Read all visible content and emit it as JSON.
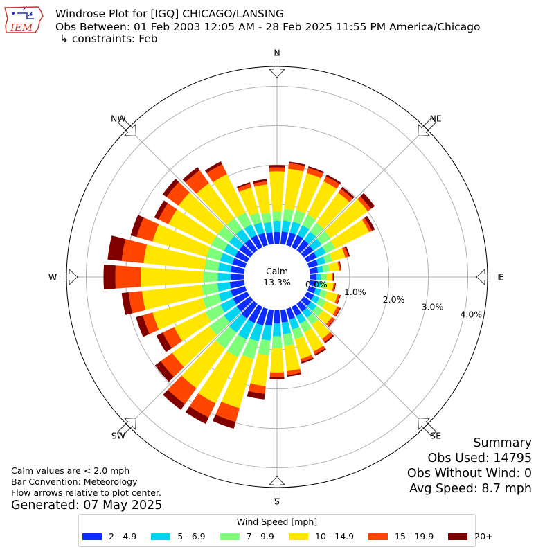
{
  "header": {
    "logo_text": "IEM",
    "title": "Windrose Plot for [IGQ] CHICAGO/LANSING",
    "subtitle": "Obs Between: 01 Feb 2003 12:05 AM - 28 Feb 2025 11:55 PM America/Chicago",
    "constraints": "↳ constraints: Feb"
  },
  "notes": {
    "calm_note": "Calm values are < 2.0 mph",
    "bar_convention": "Bar Convention: Meteorology",
    "flow_arrows": "Flow arrows relative to plot center.",
    "generated": "Generated: 07 May 2025"
  },
  "summary": {
    "heading": "Summary",
    "obs_used": "Obs Used: 14795",
    "obs_without_wind": "Obs Without Wind: 0",
    "avg_speed": "Avg Speed: 8.7 mph"
  },
  "legend": {
    "title": "Wind Speed [mph]",
    "items": [
      {
        "label": "2 - 4.9",
        "color": "#0c2cff"
      },
      {
        "label": "5 - 6.9",
        "color": "#00d4f0"
      },
      {
        "label": "7 - 9.9",
        "color": "#7dff7a"
      },
      {
        "label": "10 - 14.9",
        "color": "#ffe600"
      },
      {
        "label": "15 - 19.9",
        "color": "#ff4500"
      },
      {
        "label": "20+",
        "color": "#800000"
      }
    ]
  },
  "chart_data": {
    "type": "windrose",
    "calm_label": "Calm",
    "calm_value": "13.3%",
    "radial_ticks": [
      {
        "value": 0,
        "label": "0.0%"
      },
      {
        "value": 1,
        "label": "1.0%"
      },
      {
        "value": 2,
        "label": "2.0%"
      },
      {
        "value": 3,
        "label": "3.0%"
      },
      {
        "value": 4,
        "label": "4.0%"
      }
    ],
    "rmax": 4.5,
    "directions": [
      {
        "label": "N",
        "deg": 0
      },
      {
        "label": "NE",
        "deg": 45
      },
      {
        "label": "E",
        "deg": 90
      },
      {
        "label": "SE",
        "deg": 135
      },
      {
        "label": "S",
        "deg": 180
      },
      {
        "label": "SW",
        "deg": 225
      },
      {
        "label": "W",
        "deg": 270
      },
      {
        "label": "NW",
        "deg": 315
      }
    ],
    "sector_width_deg": 10,
    "bins": [
      "2 - 4.9",
      "5 - 6.9",
      "7 - 9.9",
      "10 - 14.9",
      "15 - 19.9",
      "20+"
    ],
    "sectors": [
      {
        "deg": 0,
        "cumulative": [
          0.3,
          0.58,
          0.82,
          1.84,
          1.94,
          2.0
        ]
      },
      {
        "deg": 10,
        "cumulative": [
          0.32,
          0.6,
          0.9,
          1.92,
          2.06,
          2.1
        ]
      },
      {
        "deg": 20,
        "cumulative": [
          0.33,
          0.62,
          0.92,
          1.9,
          2.04,
          2.08
        ]
      },
      {
        "deg": 30,
        "cumulative": [
          0.34,
          0.62,
          0.92,
          1.86,
          2.0,
          2.05
        ]
      },
      {
        "deg": 40,
        "cumulative": [
          0.32,
          0.58,
          0.86,
          1.8,
          1.92,
          1.98
        ]
      },
      {
        "deg": 50,
        "cumulative": [
          0.3,
          0.56,
          0.84,
          2.0,
          2.1,
          2.22
        ]
      },
      {
        "deg": 60,
        "cumulative": [
          0.28,
          0.54,
          0.8,
          1.76,
          1.84,
          1.92
        ]
      },
      {
        "deg": 70,
        "cumulative": [
          0.24,
          0.44,
          0.62,
          0.96,
          1.04,
          1.08
        ]
      },
      {
        "deg": 80,
        "cumulative": [
          0.2,
          0.34,
          0.5,
          0.74,
          0.78,
          0.8
        ]
      },
      {
        "deg": 90,
        "cumulative": [
          0.16,
          0.28,
          0.42,
          0.56,
          0.58,
          0.6
        ]
      },
      {
        "deg": 100,
        "cumulative": [
          0.16,
          0.28,
          0.42,
          0.6,
          0.64,
          0.66
        ]
      },
      {
        "deg": 110,
        "cumulative": [
          0.18,
          0.32,
          0.48,
          0.76,
          0.82,
          0.84
        ]
      },
      {
        "deg": 120,
        "cumulative": [
          0.2,
          0.36,
          0.54,
          0.86,
          0.94,
          0.96
        ]
      },
      {
        "deg": 130,
        "cumulative": [
          0.22,
          0.4,
          0.6,
          0.88,
          0.96,
          0.98
        ]
      },
      {
        "deg": 140,
        "cumulative": [
          0.24,
          0.44,
          0.66,
          1.1,
          1.2,
          1.24
        ]
      },
      {
        "deg": 150,
        "cumulative": [
          0.26,
          0.48,
          0.72,
          1.26,
          1.34,
          1.38
        ]
      },
      {
        "deg": 160,
        "cumulative": [
          0.28,
          0.54,
          0.8,
          1.32,
          1.4,
          1.44
        ]
      },
      {
        "deg": 170,
        "cumulative": [
          0.32,
          0.62,
          0.92,
          1.56,
          1.66,
          1.7
        ]
      },
      {
        "deg": 180,
        "cumulative": [
          0.34,
          0.66,
          0.96,
          1.58,
          1.7,
          1.76
        ]
      },
      {
        "deg": 190,
        "cumulative": [
          0.4,
          0.78,
          1.16,
          1.94,
          2.14,
          2.28
        ]
      },
      {
        "deg": 200,
        "cumulative": [
          0.44,
          0.86,
          1.32,
          2.62,
          2.98,
          3.16
        ]
      },
      {
        "deg": 210,
        "cumulative": [
          0.46,
          0.92,
          1.42,
          2.72,
          3.12,
          3.3
        ]
      },
      {
        "deg": 220,
        "cumulative": [
          0.46,
          0.9,
          1.4,
          2.64,
          3.14,
          3.32
        ]
      },
      {
        "deg": 230,
        "cumulative": [
          0.42,
          0.82,
          1.28,
          2.44,
          2.8,
          2.98
        ]
      },
      {
        "deg": 240,
        "cumulative": [
          0.4,
          0.76,
          1.18,
          2.06,
          2.38,
          2.56
        ]
      },
      {
        "deg": 250,
        "cumulative": [
          0.38,
          0.7,
          1.12,
          2.44,
          2.7,
          2.88
        ]
      },
      {
        "deg": 260,
        "cumulative": [
          0.36,
          0.68,
          1.08,
          2.6,
          2.94,
          3.12
        ]
      },
      {
        "deg": 270,
        "cumulative": [
          0.34,
          0.66,
          1.04,
          2.62,
          3.26,
          3.56
        ]
      },
      {
        "deg": 280,
        "cumulative": [
          0.34,
          0.66,
          1.0,
          2.56,
          3.12,
          3.48
        ]
      },
      {
        "deg": 290,
        "cumulative": [
          0.34,
          0.66,
          1.02,
          2.44,
          2.86,
          3.02
        ]
      },
      {
        "deg": 300,
        "cumulative": [
          0.34,
          0.66,
          1.02,
          2.22,
          2.5,
          2.62
        ]
      },
      {
        "deg": 310,
        "cumulative": [
          0.34,
          0.66,
          1.02,
          2.24,
          2.62,
          2.74
        ]
      },
      {
        "deg": 320,
        "cumulative": [
          0.34,
          0.66,
          1.0,
          2.1,
          2.5,
          2.6
        ]
      },
      {
        "deg": 330,
        "cumulative": [
          0.34,
          0.64,
          0.98,
          2.06,
          2.34,
          2.42
        ]
      },
      {
        "deg": 340,
        "cumulative": [
          0.32,
          0.6,
          0.86,
          1.52,
          1.62,
          1.66
        ]
      },
      {
        "deg": 350,
        "cumulative": [
          0.3,
          0.56,
          0.8,
          1.52,
          1.6,
          1.66
        ]
      }
    ]
  }
}
